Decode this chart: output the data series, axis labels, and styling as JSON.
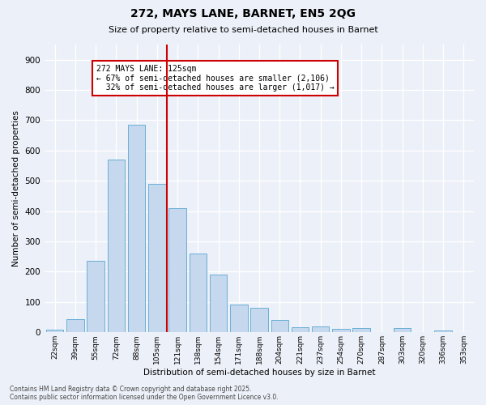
{
  "title": "272, MAYS LANE, BARNET, EN5 2QG",
  "subtitle": "Size of property relative to semi-detached houses in Barnet",
  "xlabel": "Distribution of semi-detached houses by size in Barnet",
  "ylabel": "Number of semi-detached properties",
  "categories": [
    "22sqm",
    "39sqm",
    "55sqm",
    "72sqm",
    "88sqm",
    "105sqm",
    "121sqm",
    "138sqm",
    "154sqm",
    "171sqm",
    "188sqm",
    "204sqm",
    "221sqm",
    "237sqm",
    "254sqm",
    "270sqm",
    "287sqm",
    "303sqm",
    "320sqm",
    "336sqm",
    "353sqm"
  ],
  "values": [
    8,
    43,
    235,
    570,
    685,
    490,
    410,
    260,
    190,
    93,
    82,
    40,
    17,
    20,
    12,
    13,
    0,
    13,
    0,
    5,
    0
  ],
  "bar_color": "#c5d8ed",
  "bar_edge_color": "#6aafd6",
  "vline_index": 6,
  "marker_label": "272 MAYS LANE: 125sqm",
  "marker_smaller_pct": "67%",
  "marker_smaller_count": "2,106",
  "marker_larger_pct": "32%",
  "marker_larger_count": "1,017",
  "vline_color": "#cc0000",
  "annotation_box_color": "#cc0000",
  "background_color": "#ecf0f8",
  "grid_color": "#ffffff",
  "footer_line1": "Contains HM Land Registry data © Crown copyright and database right 2025.",
  "footer_line2": "Contains public sector information licensed under the Open Government Licence v3.0.",
  "ylim": [
    0,
    950
  ],
  "yticks": [
    0,
    100,
    200,
    300,
    400,
    500,
    600,
    700,
    800,
    900
  ]
}
